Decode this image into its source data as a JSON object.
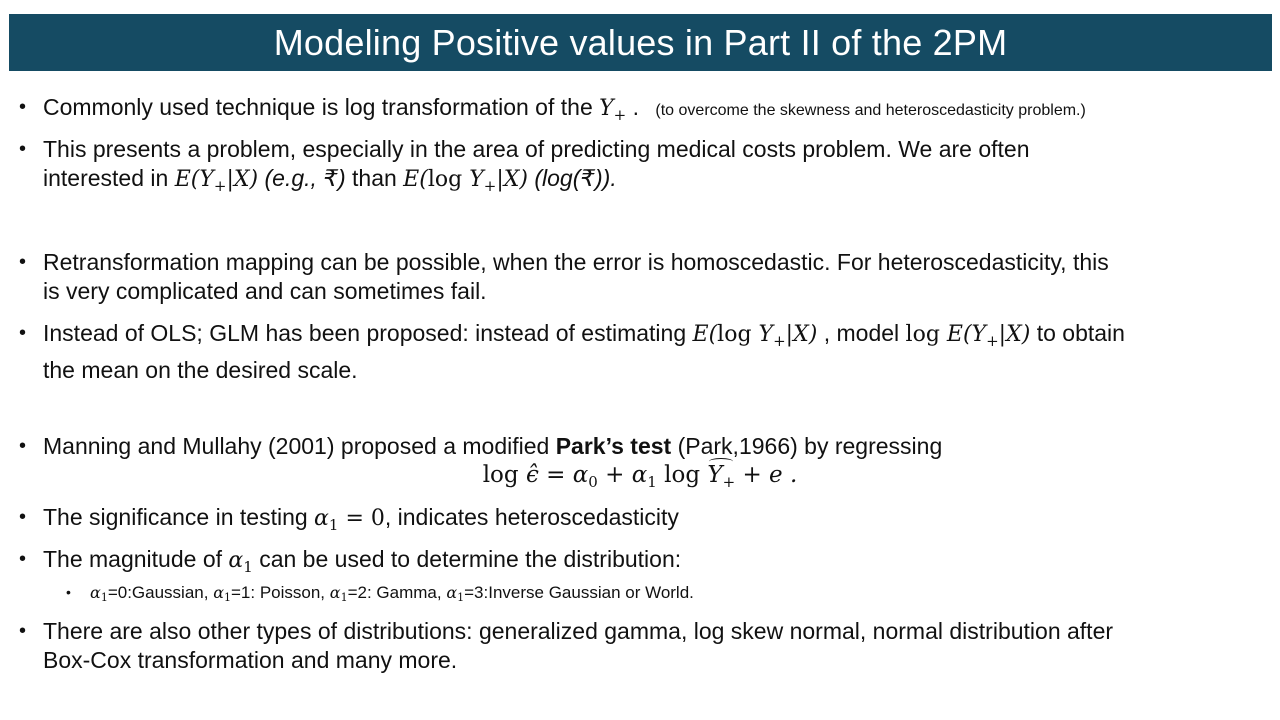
{
  "title": "Modeling Positive values in Part II of the 2PM",
  "b1": {
    "text": "Commonly used technique is log transformation of the ",
    "sym": "Y",
    "sub": "+",
    "dot": " .",
    "note": "(to overcome the skewness and heteroscedasticity problem.)"
  },
  "b2": {
    "line1": "This presents a problem, especially in the area of predicting medical costs problem. We are often",
    "l2_a": "interested in ",
    "expr1": "E(Y",
    "expr1_sub": "+",
    "expr1_end": "|X)",
    "eg": " (e.g., ₹)",
    "than": " than ",
    "expr2_a": "E(",
    "expr2_log": "log",
    "expr2_y": " Y",
    "expr2_sub": "+",
    "expr2_end": "|X)",
    "log_r": " (log(₹))."
  },
  "b3": {
    "line1": "Retransformation mapping can be possible, when the error is homoscedastic. For heteroscedasticity, this",
    "line2": "is very complicated and can sometimes fail."
  },
  "b4": {
    "a": "Instead of OLS; GLM has been proposed: instead of estimating ",
    "e1": "E(",
    "e1log": "log",
    "e1y": " Y",
    "e1sub": "+",
    "e1end": "|X)",
    "b": " , model ",
    "e2log": "log ",
    "e2": "E(Y",
    "e2sub": "+",
    "e2end": "|X)",
    "c": " to obtain",
    "line2": "the mean on the desired scale."
  },
  "b5": {
    "a": "Manning and Mullahy (2001) proposed a modified ",
    "bold": "Park’s test",
    "b": " (Park,1966) by regressing"
  },
  "eq": {
    "log1": "log ",
    "eps": "ϵ̂",
    "eq": " = α",
    "s0": "0",
    "plus": " + α",
    "s1": "1",
    "log2": " log ",
    "y": "Y",
    "ysub": "+",
    "end": " + e ."
  },
  "b6": {
    "a": "The significance in testing ",
    "alpha": "α",
    "sub": "1",
    "eq": " = 0",
    "b": ", indicates heteroscedasticity"
  },
  "b7": {
    "a": "The magnitude of ",
    "alpha": "α",
    "sub": "1",
    "b": " can be used to determine the distribution:"
  },
  "sub1": {
    "a1": "α",
    "s1": "1",
    "t1": "=0:Gaussian, ",
    "a2": "α",
    "s2": "1",
    "t2": "=1: Poisson, ",
    "a3": "α",
    "s3": "1",
    "t3": "=2: Gamma, ",
    "a4": "α",
    "s4": "1",
    "t4": "=3:Inverse Gaussian or World."
  },
  "b8": {
    "line1": "There are also other types of distributions: generalized gamma, log skew normal, normal distribution after",
    "line2": "Box-Cox transformation and many more."
  },
  "bullet_char": "•",
  "colors": {
    "title_bg": "#154b63",
    "title_text": "#ffffff",
    "body_text": "#111111"
  }
}
